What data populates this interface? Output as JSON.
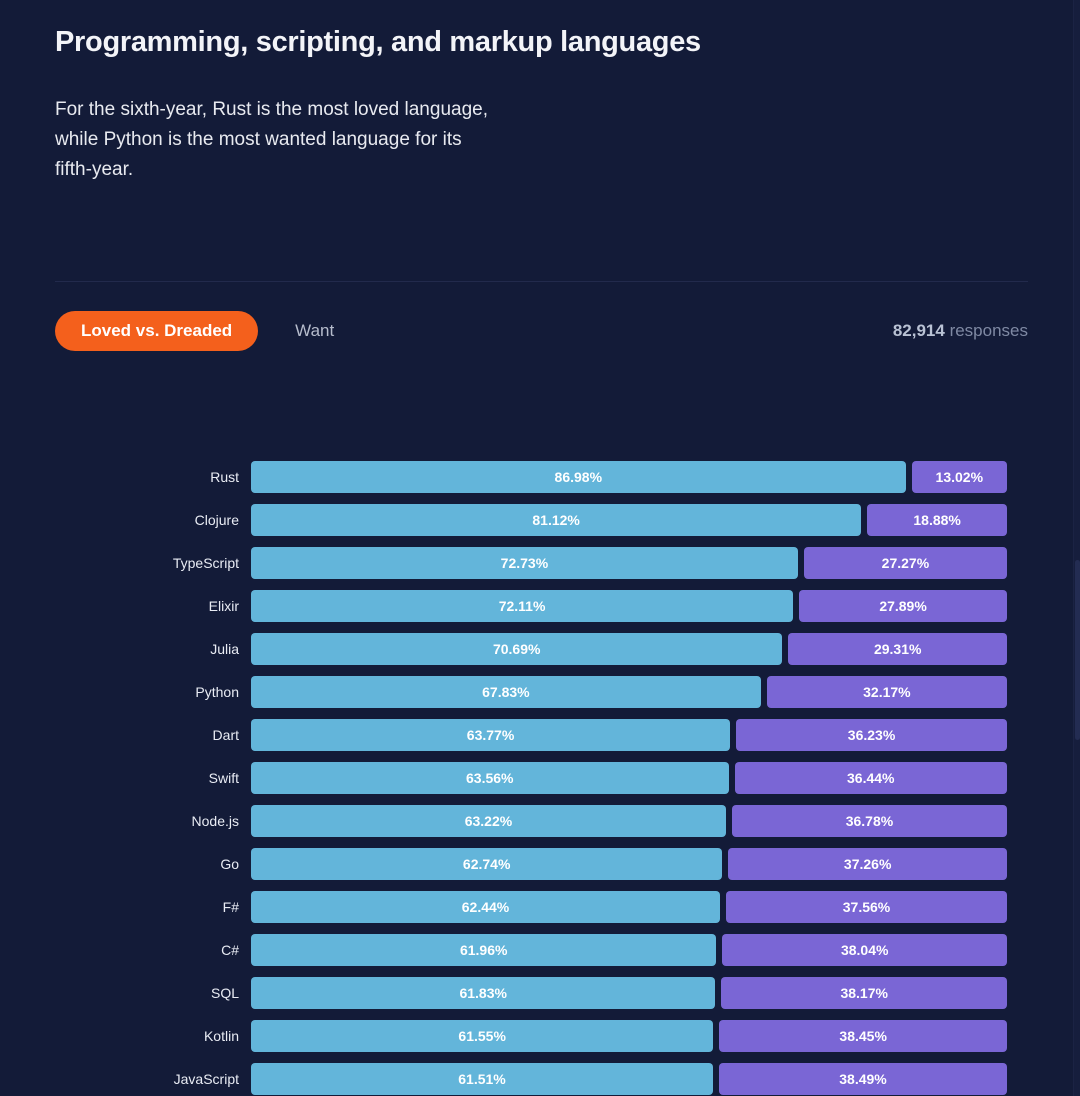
{
  "colors": {
    "background": "#131b38",
    "accent_orange": "#f4601c",
    "loved_blue": "#63b5da",
    "dreaded_purple": "#7a66d5",
    "divider": "#222a4c"
  },
  "header": {
    "title": "Programming, scripting, and markup languages",
    "description": "For the sixth-year, Rust is the most loved language, while Python is the most wanted language for its fifth-year."
  },
  "tabs": [
    {
      "label": "Loved vs. Dreaded",
      "active": true
    },
    {
      "label": "Want",
      "active": false
    }
  ],
  "responses": {
    "count": "82,914",
    "label": "responses"
  },
  "chart_data": {
    "type": "bar",
    "orientation": "horizontal",
    "stacked": true,
    "unit": "percent",
    "xlim": [
      0,
      100
    ],
    "value_format": "0.00%",
    "categories": [
      "Rust",
      "Clojure",
      "TypeScript",
      "Elixir",
      "Julia",
      "Python",
      "Dart",
      "Swift",
      "Node.js",
      "Go",
      "F#",
      "C#",
      "SQL",
      "Kotlin",
      "JavaScript"
    ],
    "series": [
      {
        "name": "Loved",
        "color": "#63b5da",
        "values": [
          86.98,
          81.12,
          72.73,
          72.11,
          70.69,
          67.83,
          63.77,
          63.56,
          63.22,
          62.74,
          62.44,
          61.96,
          61.83,
          61.55,
          61.51
        ]
      },
      {
        "name": "Dreaded",
        "color": "#7a66d5",
        "values": [
          13.02,
          18.88,
          27.27,
          27.89,
          29.31,
          32.17,
          36.23,
          36.44,
          36.78,
          37.26,
          37.56,
          38.04,
          38.17,
          38.45,
          38.49
        ]
      }
    ]
  }
}
